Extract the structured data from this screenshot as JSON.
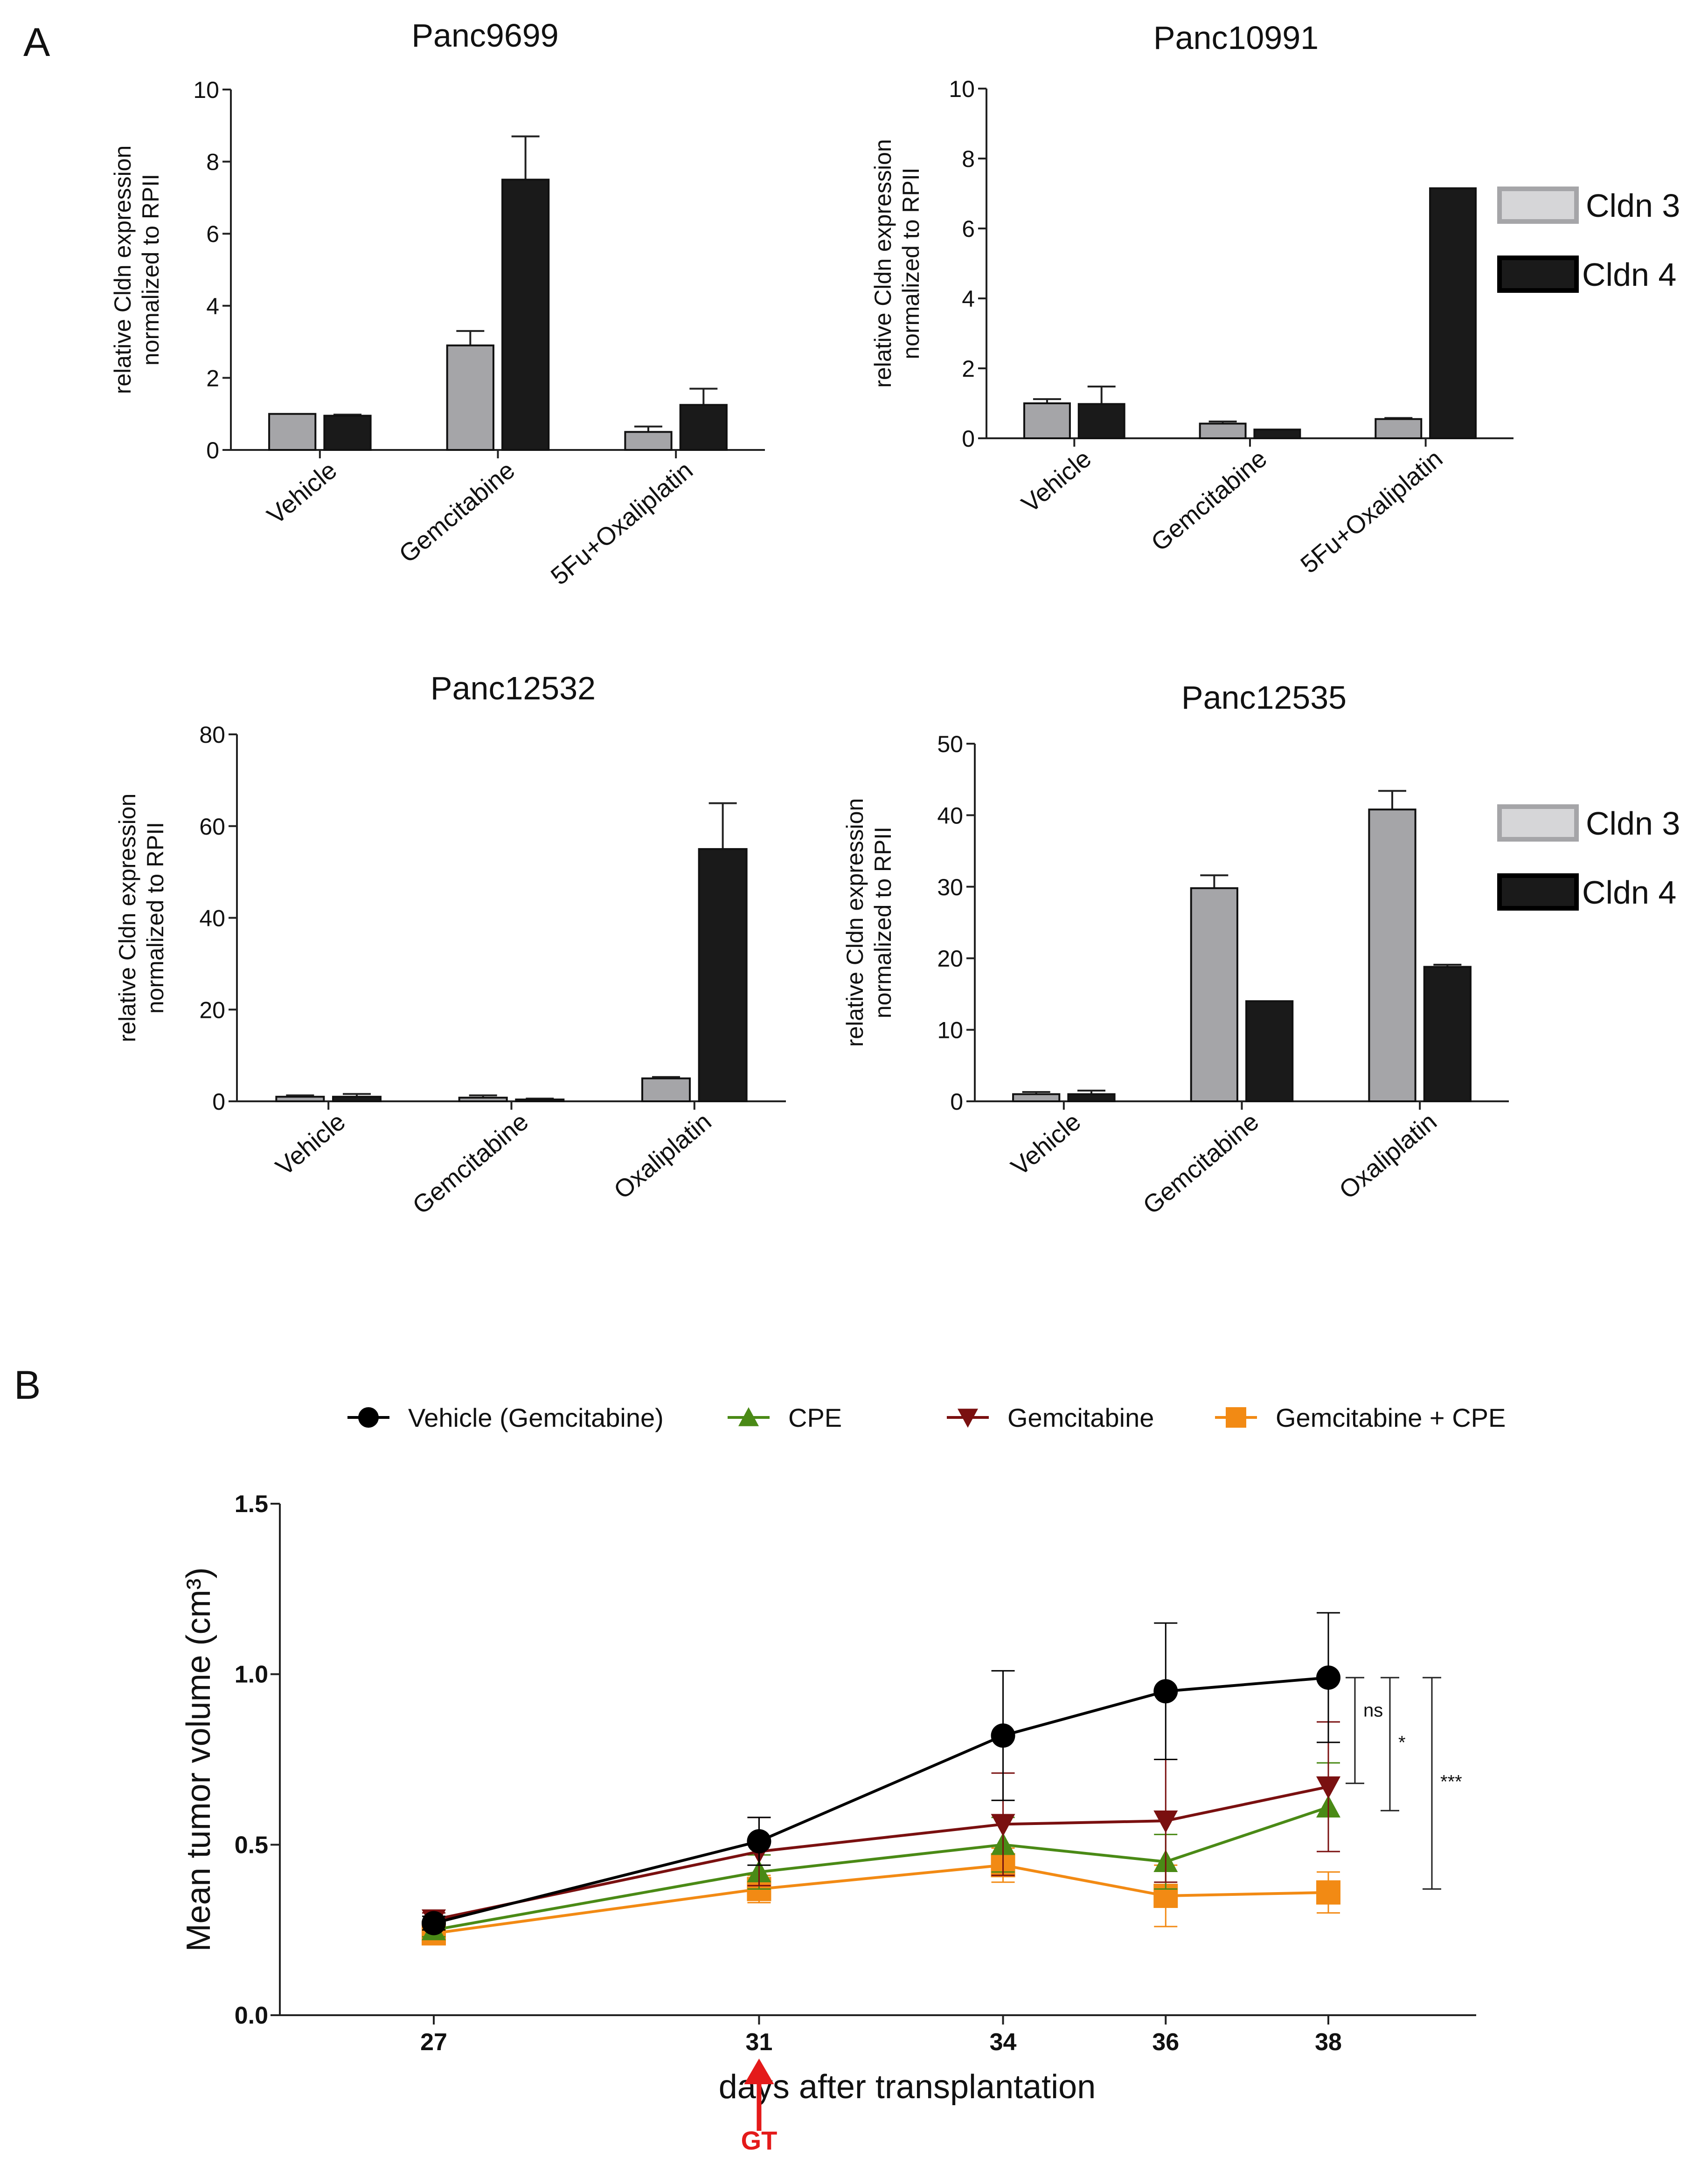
{
  "panel_labels": {
    "a": "A",
    "b": "B"
  },
  "legend_bars": {
    "series": [
      {
        "name": "Cldn 3",
        "color": "#a5a5a8"
      },
      {
        "name": "Cldn 4",
        "color": "#1a1a1a"
      }
    ]
  },
  "chart_data": [
    {
      "type": "bar",
      "title": "Panc9699",
      "ylabel": "relative Cldn expression normalized to RPII",
      "ylabel_lines": [
        "relative Cldn expression",
        "normalized to RPII"
      ],
      "ylim": [
        0,
        10
      ],
      "yticks": [
        0,
        2,
        4,
        6,
        8,
        10
      ],
      "categories": [
        "Vehicle",
        "Gemcitabine",
        "5Fu+Oxaliplatin"
      ],
      "series": [
        {
          "name": "Cldn 3",
          "values": [
            1.0,
            2.9,
            0.5
          ],
          "errors": [
            0,
            0.4,
            0.15
          ]
        },
        {
          "name": "Cldn 4",
          "values": [
            0.95,
            7.5,
            1.25
          ],
          "errors": [
            0.03,
            1.2,
            0.45
          ]
        }
      ]
    },
    {
      "type": "bar",
      "title": "Panc10991",
      "ylabel": "relative Cldn expression normalized to RPII",
      "ylabel_lines": [
        "relative Cldn expression",
        "normalized to RPII"
      ],
      "ylim": [
        0,
        10
      ],
      "yticks": [
        0,
        2,
        4,
        6,
        8,
        10
      ],
      "categories": [
        "Vehicle",
        "Gemcitabine",
        "5Fu+Oxaliplatin"
      ],
      "series": [
        {
          "name": "Cldn 3",
          "values": [
            1.0,
            0.42,
            0.55
          ],
          "errors": [
            0.12,
            0.06,
            0.03
          ]
        },
        {
          "name": "Cldn 4",
          "values": [
            0.98,
            0.25,
            7.15
          ],
          "errors": [
            0.5,
            0.0,
            0.0
          ]
        }
      ]
    },
    {
      "type": "bar",
      "title": "Panc12532",
      "ylabel": "relative Cldn expression normalized to RPII",
      "ylabel_lines": [
        "relative Cldn expression",
        "normalized to RPII"
      ],
      "ylim": [
        0,
        80
      ],
      "yticks": [
        0,
        20,
        40,
        60,
        80
      ],
      "categories": [
        "Vehicle",
        "Gemcitabine",
        "Oxaliplatin"
      ],
      "series": [
        {
          "name": "Cldn 3",
          "values": [
            1.0,
            0.8,
            5.0
          ],
          "errors": [
            0.3,
            0.5,
            0.3
          ]
        },
        {
          "name": "Cldn 4",
          "values": [
            1.0,
            0.4,
            55
          ],
          "errors": [
            0.6,
            0.2,
            10
          ]
        }
      ]
    },
    {
      "type": "bar",
      "title": "Panc12535",
      "ylabel": "relative Cldn expression normalized to RPII",
      "ylabel_lines": [
        "relative Cldn expression",
        "normalized to RPII"
      ],
      "ylim": [
        0,
        50
      ],
      "yticks": [
        0,
        10,
        20,
        30,
        40,
        50
      ],
      "categories": [
        "Vehicle",
        "Gemcitabine",
        "Oxaliplatin"
      ],
      "series": [
        {
          "name": "Cldn 3",
          "values": [
            1.0,
            29.8,
            40.8
          ],
          "errors": [
            0.3,
            1.8,
            2.6
          ]
        },
        {
          "name": "Cldn 4",
          "values": [
            1.0,
            14.0,
            18.8
          ],
          "errors": [
            0.5,
            0.0,
            0.3
          ]
        }
      ]
    },
    {
      "type": "line",
      "title": "",
      "xlabel": "days after transplantation",
      "ylabel": "Mean tumor volume (cm³)",
      "x": [
        27,
        31,
        34,
        36,
        38
      ],
      "ylim": [
        0,
        1.5
      ],
      "yticks": [
        "0.0",
        "0.5",
        "1.0",
        "1.5"
      ],
      "series": [
        {
          "name": "Vehicle (Gemcitabine)",
          "color": "#000000",
          "marker": "circle",
          "values": [
            0.27,
            0.51,
            0.82,
            0.95,
            0.99
          ],
          "errors": [
            0.02,
            0.07,
            0.19,
            0.2,
            0.19
          ]
        },
        {
          "name": "CPE",
          "color": "#4a8a16",
          "marker": "triangle-up",
          "values": [
            0.25,
            0.42,
            0.5,
            0.45,
            0.61
          ],
          "errors": [
            0.02,
            0.05,
            0.08,
            0.08,
            0.13
          ]
        },
        {
          "name": "Gemcitabine",
          "color": "#7a1010",
          "marker": "triangle-down",
          "values": [
            0.28,
            0.48,
            0.56,
            0.57,
            0.67
          ],
          "errors": [
            0.02,
            0.1,
            0.15,
            0.18,
            0.19
          ]
        },
        {
          "name": "Gemcitabine + CPE",
          "color": "#f28a14",
          "marker": "square",
          "values": [
            0.24,
            0.37,
            0.44,
            0.35,
            0.36
          ],
          "errors": [
            0.02,
            0.04,
            0.05,
            0.09,
            0.06
          ]
        }
      ],
      "annotations": [
        {
          "text": "ns",
          "y_top": 0.99,
          "y_bottom": 0.68
        },
        {
          "text": "*",
          "y_top": 0.99,
          "y_bottom": 0.6
        },
        {
          "text": "***",
          "y_top": 0.99,
          "y_bottom": 0.37
        }
      ],
      "marker_label": "GT",
      "marker_x": 31
    }
  ]
}
